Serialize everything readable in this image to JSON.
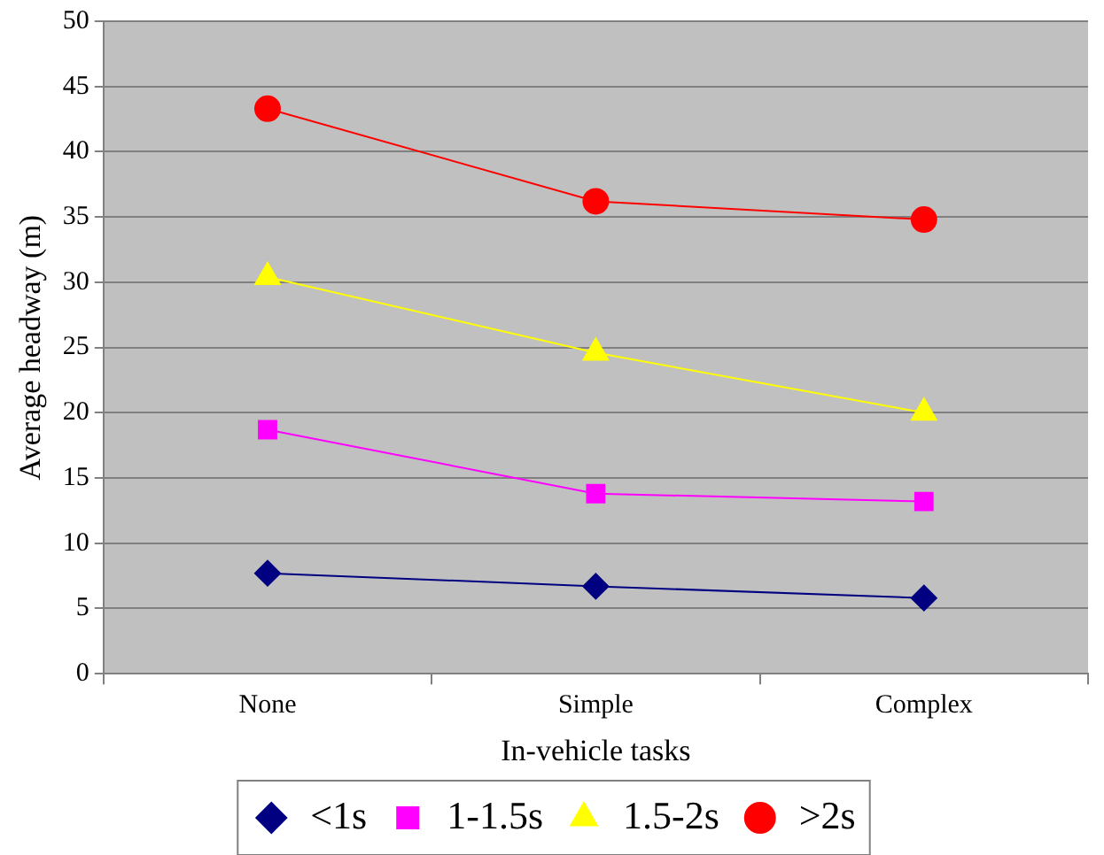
{
  "chart_data": {
    "type": "line",
    "xlabel": "In-vehicle tasks",
    "ylabel": "Average headway (m)",
    "categories": [
      "None",
      "Simple",
      "Complex"
    ],
    "series": [
      {
        "name": "<1s",
        "color": "#000080",
        "marker": "diamond",
        "values": [
          7.7,
          6.7,
          5.8
        ]
      },
      {
        "name": "1-1.5s",
        "color": "#ff00ff",
        "marker": "square",
        "values": [
          18.7,
          13.8,
          13.2
        ]
      },
      {
        "name": "1.5-2s",
        "color": "#ffff00",
        "marker": "triangle",
        "values": [
          30.4,
          24.6,
          20.0
        ]
      },
      {
        "name": ">2s",
        "color": "#ff0000",
        "marker": "circle",
        "values": [
          43.3,
          36.2,
          34.8
        ]
      }
    ],
    "ylim": [
      0,
      50
    ],
    "yticks": [
      0,
      5,
      10,
      15,
      20,
      25,
      30,
      35,
      40,
      45,
      50
    ],
    "grid": "y",
    "legend": "bottom",
    "line_style": "solid"
  }
}
